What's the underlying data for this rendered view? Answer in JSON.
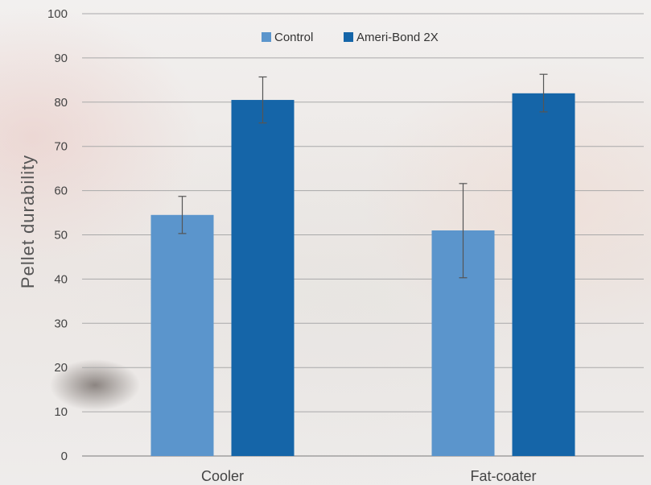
{
  "chart_data": {
    "type": "bar",
    "xlabel": "",
    "ylabel": "Pellet durability",
    "ylim": [
      0,
      100
    ],
    "yticks": [
      0,
      10,
      20,
      30,
      40,
      50,
      60,
      70,
      80,
      90,
      100
    ],
    "categories": [
      "Cooler",
      "Fat-coater"
    ],
    "grid": true,
    "legend_position": "top-center",
    "series": [
      {
        "name": "Control",
        "color": "#5b95cc",
        "values": [
          54.5,
          51
        ],
        "error_low": [
          50.3,
          40.3
        ],
        "error_high": [
          58.7,
          61.6
        ]
      },
      {
        "name": "Ameri-Bond 2X",
        "color": "#1565a8",
        "values": [
          80.5,
          82
        ],
        "error_low": [
          75.3,
          77.8
        ],
        "error_high": [
          85.7,
          86.3
        ]
      }
    ]
  }
}
